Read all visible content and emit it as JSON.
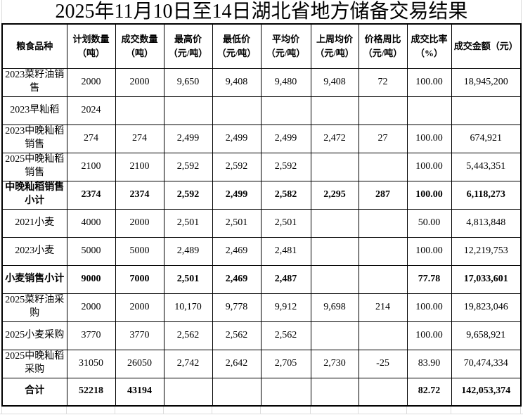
{
  "title": "2025年11月10日至14日湖北省地方储备交易结果",
  "table": {
    "columns": [
      "粮食品种",
      "计划数量\n（吨）",
      "成交数量\n（吨）",
      "最高价\n（元/吨）",
      "最低价\n（元/吨）",
      "平均价\n（元/吨）",
      "上周均价\n（元/吨）",
      "价格周比\n（元/吨）",
      "成交比率\n（%）",
      "成交金额（元）"
    ],
    "rows": [
      {
        "variety": "2023菜籽油销售",
        "plan": "2000",
        "deal": "2000",
        "high": "9,650",
        "low": "9,408",
        "avg": "9,480",
        "last_week_avg": "9,408",
        "wow_change": "72",
        "deal_ratio": "100.00",
        "amount": "18,945,200",
        "emphasis": false
      },
      {
        "variety": "2023早籼稻",
        "plan": "2024",
        "deal": "",
        "high": "",
        "low": "",
        "avg": "",
        "last_week_avg": "",
        "wow_change": "",
        "deal_ratio": "",
        "amount": "",
        "emphasis": false
      },
      {
        "variety": "2023中晚籼稻销售",
        "plan": "274",
        "deal": "274",
        "high": "2,499",
        "low": "2,499",
        "avg": "2,499",
        "last_week_avg": "2,472",
        "wow_change": "27",
        "deal_ratio": "100.00",
        "amount": "674,921",
        "emphasis": false
      },
      {
        "variety": "2025中晚籼稻销售",
        "plan": "2100",
        "deal": "2100",
        "high": "2,592",
        "low": "2,592",
        "avg": "2,592",
        "last_week_avg": "",
        "wow_change": "",
        "deal_ratio": "100.00",
        "amount": "5,443,351",
        "emphasis": false
      },
      {
        "variety": "中晚籼稻销售小计",
        "plan": "2374",
        "deal": "2374",
        "high": "2,592",
        "low": "2,499",
        "avg": "2,582",
        "last_week_avg": "2,295",
        "wow_change": "287",
        "deal_ratio": "100.00",
        "amount": "6,118,273",
        "emphasis": true
      },
      {
        "variety": "2021小麦",
        "plan": "4000",
        "deal": "2000",
        "high": "2,501",
        "low": "2,501",
        "avg": "2,501",
        "last_week_avg": "",
        "wow_change": "",
        "deal_ratio": "50.00",
        "amount": "4,813,848",
        "emphasis": false
      },
      {
        "variety": "2023小麦",
        "plan": "5000",
        "deal": "5000",
        "high": "2,489",
        "low": "2,469",
        "avg": "2,481",
        "last_week_avg": "",
        "wow_change": "",
        "deal_ratio": "100.00",
        "amount": "12,219,753",
        "emphasis": false
      },
      {
        "variety": "小麦销售小计",
        "plan": "9000",
        "deal": "7000",
        "high": "2,501",
        "low": "2,469",
        "avg": "2,487",
        "last_week_avg": "",
        "wow_change": "",
        "deal_ratio": "77.78",
        "amount": "17,033,601",
        "emphasis": true
      },
      {
        "variety": "2025菜籽油采购",
        "plan": "2000",
        "deal": "2000",
        "high": "10,170",
        "low": "9,778",
        "avg": "9,912",
        "last_week_avg": "9,698",
        "wow_change": "214",
        "deal_ratio": "100.00",
        "amount": "19,823,046",
        "emphasis": false
      },
      {
        "variety": "2025小麦采购",
        "plan": "3770",
        "deal": "3770",
        "high": "2,562",
        "low": "2,562",
        "avg": "2,562",
        "last_week_avg": "",
        "wow_change": "",
        "deal_ratio": "100.00",
        "amount": "9,658,921",
        "emphasis": false
      },
      {
        "variety": "2025中晚籼稻采购",
        "plan": "31050",
        "deal": "26050",
        "high": "2,742",
        "low": "2,642",
        "avg": "2,705",
        "last_week_avg": "2,730",
        "wow_change": "-25",
        "deal_ratio": "83.90",
        "amount": "70,474,334",
        "emphasis": false
      },
      {
        "variety": "合计",
        "plan": "52218",
        "deal": "43194",
        "high": "",
        "low": "",
        "avg": "",
        "last_week_avg": "",
        "wow_change": "",
        "deal_ratio": "82.72",
        "amount": "142,053,374",
        "emphasis": true
      }
    ]
  },
  "colors": {
    "background": "#ffffff",
    "table_border": "#000000",
    "text": "#000000",
    "gridline": "#dcdcdc"
  }
}
